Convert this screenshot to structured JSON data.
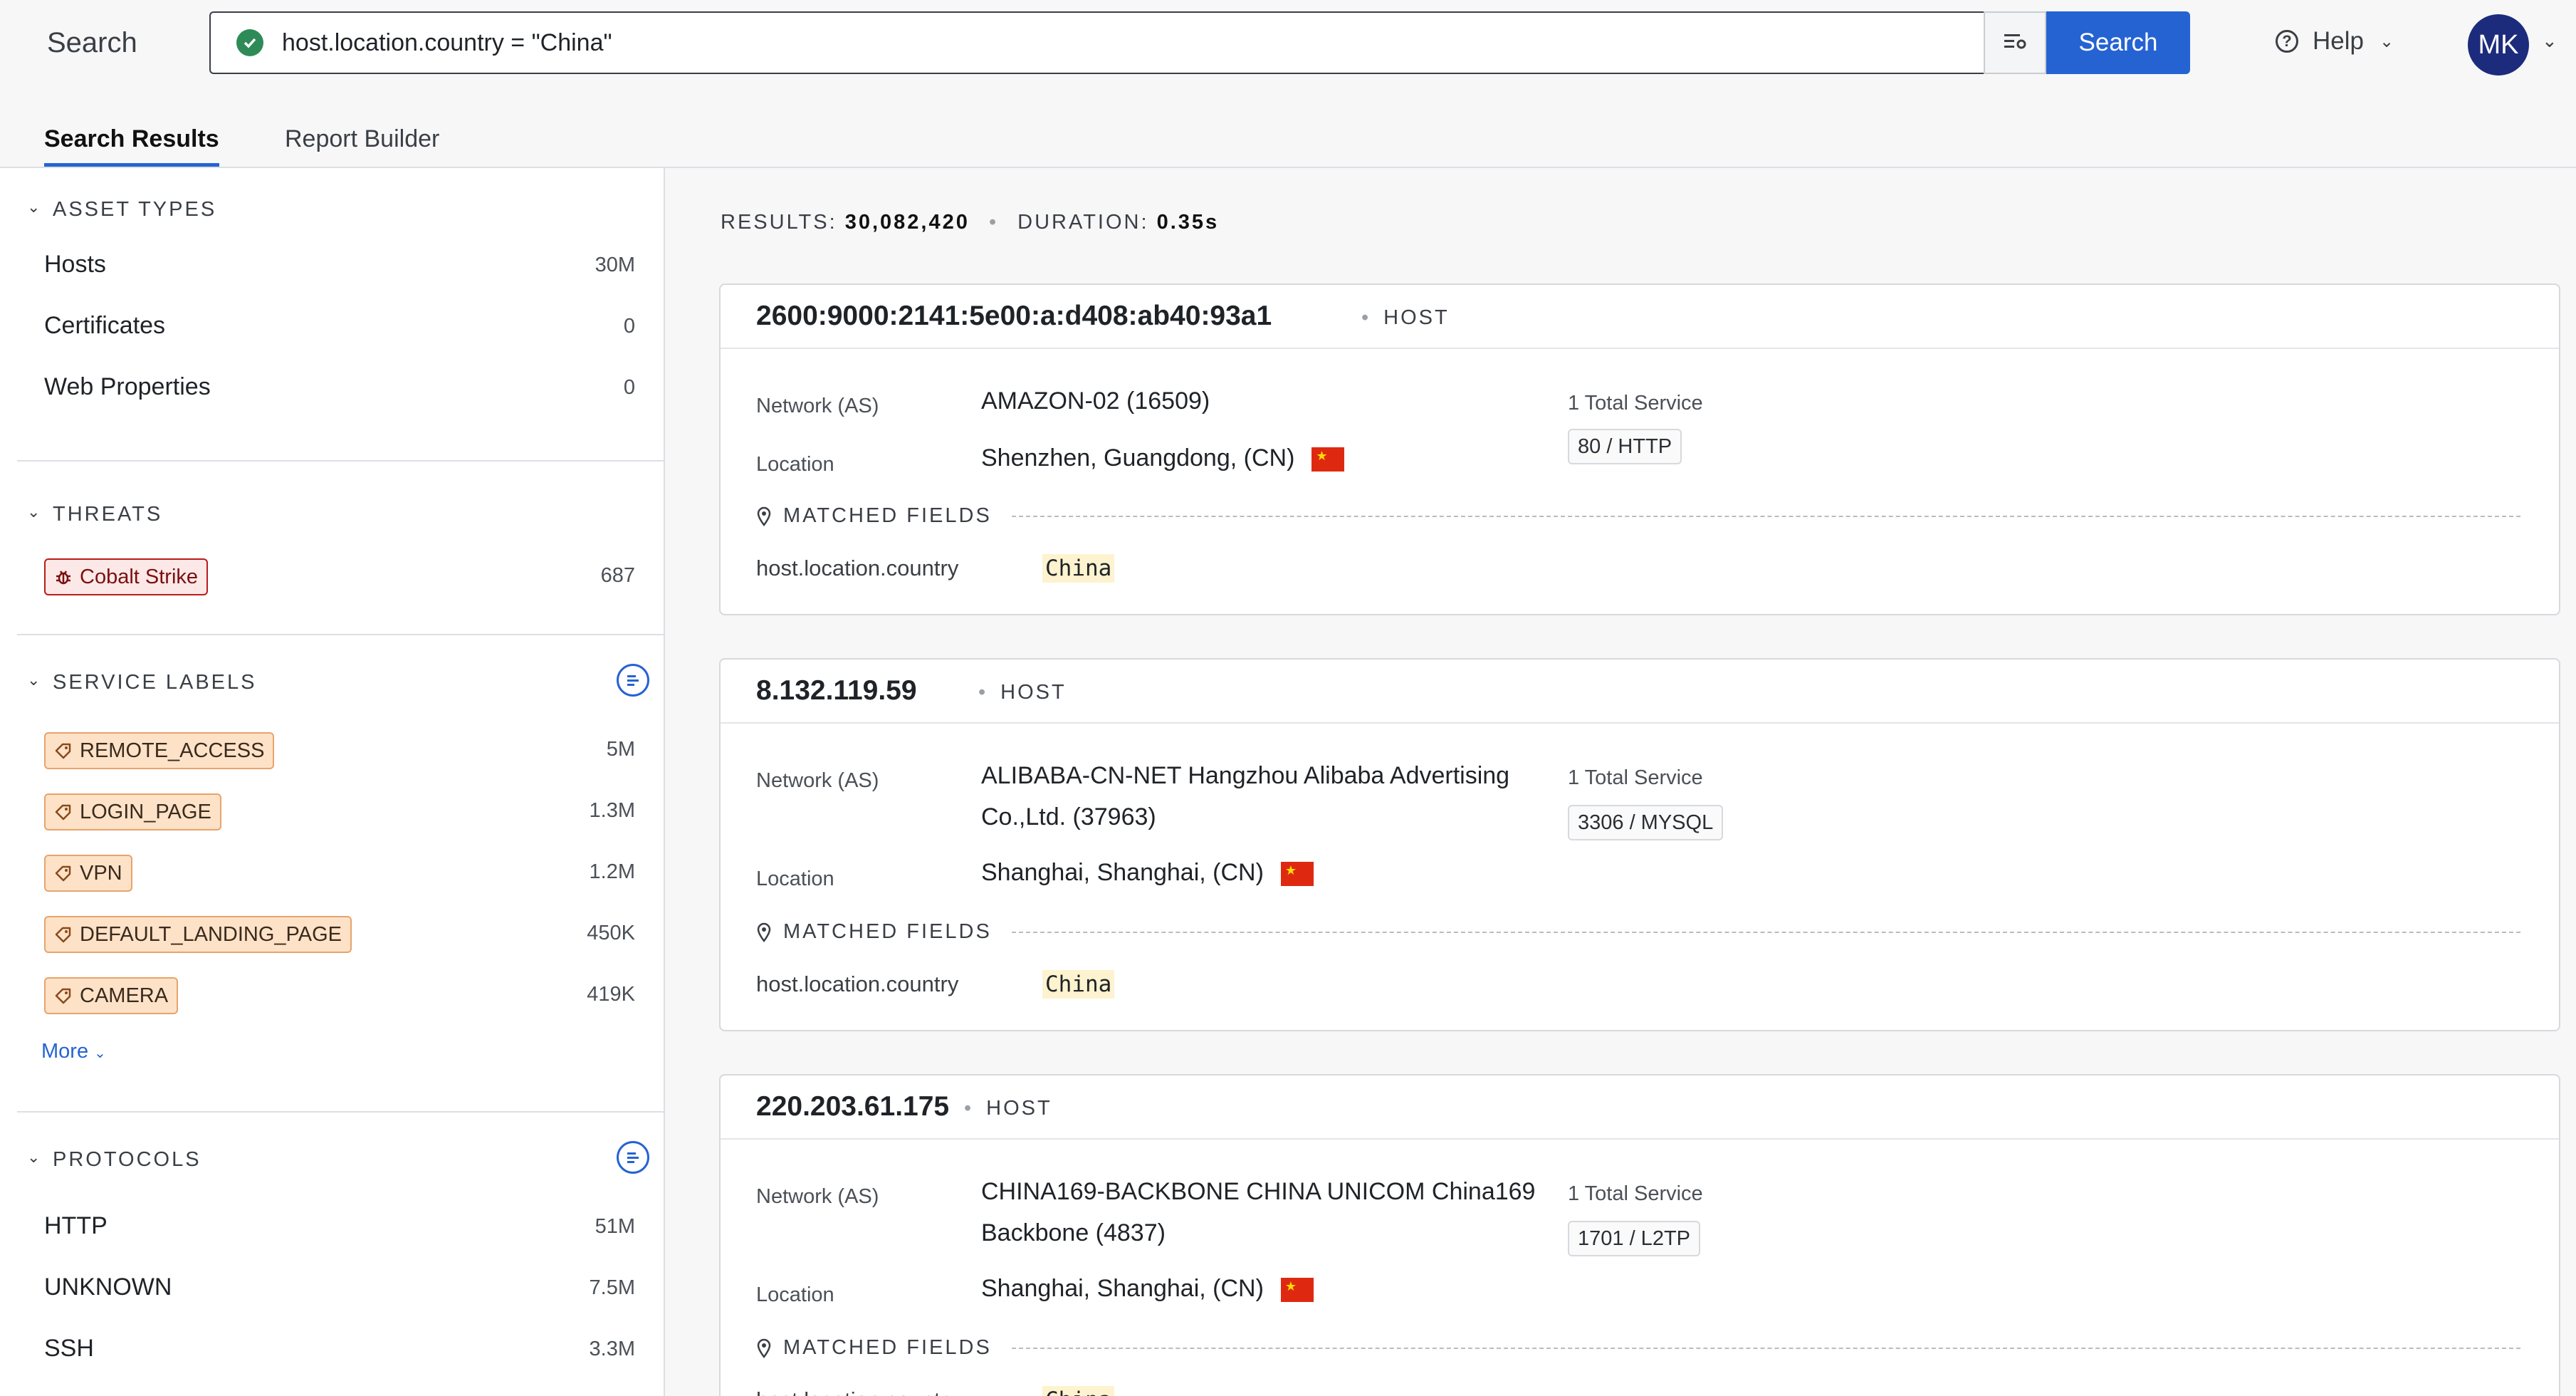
{
  "header": {
    "brand": "Search",
    "query": "host.location.country = \"China\"",
    "search_button": "Search",
    "help_label": "Help",
    "avatar_initials": "MK",
    "accent_color": "#2563d3"
  },
  "tabs": [
    {
      "label": "Search Results",
      "active": true
    },
    {
      "label": "Report Builder",
      "active": false
    }
  ],
  "sidebar": {
    "asset_types": {
      "title": "ASSET TYPES",
      "items": [
        {
          "label": "Hosts",
          "count": "30M"
        },
        {
          "label": "Certificates",
          "count": "0"
        },
        {
          "label": "Web Properties",
          "count": "0"
        }
      ]
    },
    "threats": {
      "title": "THREATS",
      "items": [
        {
          "label": "Cobalt Strike",
          "count": "687",
          "icon": "bug-icon"
        }
      ]
    },
    "service_labels": {
      "title": "SERVICE LABELS",
      "items": [
        {
          "label": "REMOTE_ACCESS",
          "count": "5M"
        },
        {
          "label": "LOGIN_PAGE",
          "count": "1.3M"
        },
        {
          "label": "VPN",
          "count": "1.2M"
        },
        {
          "label": "DEFAULT_LANDING_PAGE",
          "count": "450K"
        },
        {
          "label": "CAMERA",
          "count": "419K"
        }
      ],
      "more_label": "More"
    },
    "protocols": {
      "title": "PROTOCOLS",
      "items": [
        {
          "label": "HTTP",
          "count": "51M"
        },
        {
          "label": "UNKNOWN",
          "count": "7.5M"
        },
        {
          "label": "SSH",
          "count": "3.3M"
        }
      ]
    }
  },
  "results": {
    "results_label": "RESULTS:",
    "results_count": "30,082,420",
    "duration_label": "DURATION:",
    "duration_value": "0.35s",
    "matched_fields_label": "MATCHED FIELDS",
    "network_label": "Network (AS)",
    "location_label": "Location",
    "cards": [
      {
        "ip": "2600:9000:2141:5e00:a:d408:ab40:93a1",
        "type": "HOST",
        "network_line1": "AMAZON-02 (16509)",
        "network_line2": "",
        "location": "Shenzhen, Guangdong, (CN)",
        "services_title": "1 Total Service",
        "service": "80 / HTTP",
        "matched_key": "host.location.country",
        "matched_value": "China"
      },
      {
        "ip": "8.132.119.59",
        "type": "HOST",
        "network_line1": "ALIBABA-CN-NET Hangzhou Alibaba Advertising",
        "network_line2": "Co.,Ltd. (37963)",
        "location": "Shanghai, Shanghai, (CN)",
        "services_title": "1 Total Service",
        "service": "3306 / MYSQL",
        "matched_key": "host.location.country",
        "matched_value": "China"
      },
      {
        "ip": "220.203.61.175",
        "type": "HOST",
        "network_line1": "CHINA169-BACKBONE CHINA UNICOM China169",
        "network_line2": "Backbone (4837)",
        "location": "Shanghai, Shanghai, (CN)",
        "services_title": "1 Total Service",
        "service": "1701 / L2TP",
        "matched_key": "host.location.country",
        "matched_value": "China"
      }
    ]
  }
}
